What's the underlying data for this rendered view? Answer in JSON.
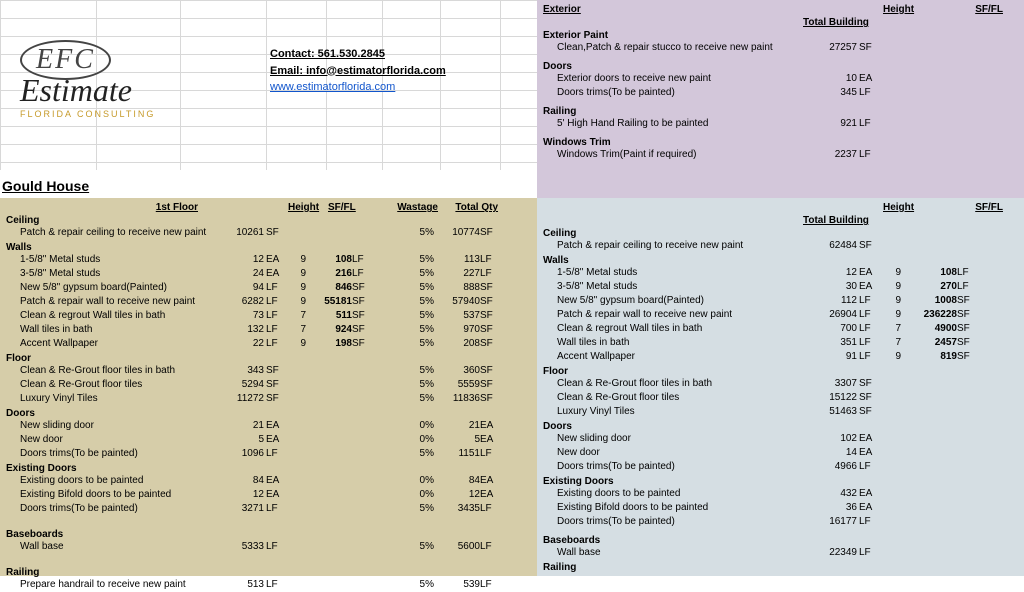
{
  "contact": {
    "phone_label": "Contact: 561.530.2845",
    "email_label": "Email: info@estimatorflorida.com",
    "url": "www.estimatorflorida.com"
  },
  "project_title": "Gould House",
  "logo": {
    "efc": "EFC",
    "word": "Estimate",
    "sub": "FLORIDA CONSULTING"
  },
  "left": {
    "floor_label": "1st Floor",
    "col_height": "Height",
    "col_sffl": "SF/FL",
    "col_wastage": "Wastage",
    "col_totalqty": "Total Qty",
    "sections": [
      {
        "name": "Ceiling",
        "rows": [
          {
            "d": "Patch & repair ceiling to receive new paint",
            "q": "10261",
            "u": "SF",
            "h": "",
            "v": "",
            "vu": "",
            "w": "5%",
            "t": "10774",
            "tu": "SF"
          }
        ]
      },
      {
        "name": "Walls",
        "rows": [
          {
            "d": "1-5/8\" Metal studs",
            "q": "12",
            "u": "EA",
            "h": "9",
            "v": "108",
            "vu": "LF",
            "w": "5%",
            "t": "113",
            "tu": "LF"
          },
          {
            "d": "3-5/8\" Metal studs",
            "q": "24",
            "u": "EA",
            "h": "9",
            "v": "216",
            "vu": "LF",
            "w": "5%",
            "t": "227",
            "tu": "LF"
          },
          {
            "d": "New 5/8\" gypsum board(Painted)",
            "q": "94",
            "u": "LF",
            "h": "9",
            "v": "846",
            "vu": "SF",
            "w": "5%",
            "t": "888",
            "tu": "SF"
          },
          {
            "d": "Patch & repair wall to receive new paint",
            "q": "6282",
            "u": "LF",
            "h": "9",
            "v": "55181",
            "vu": "SF",
            "w": "5%",
            "t": "57940",
            "tu": "SF"
          },
          {
            "d": "Clean & regrout Wall tiles in bath",
            "q": "73",
            "u": "LF",
            "h": "7",
            "v": "511",
            "vu": "SF",
            "w": "5%",
            "t": "537",
            "tu": "SF"
          },
          {
            "d": "Wall tiles in bath",
            "q": "132",
            "u": "LF",
            "h": "7",
            "v": "924",
            "vu": "SF",
            "w": "5%",
            "t": "970",
            "tu": "SF"
          },
          {
            "d": "Accent Wallpaper",
            "q": "22",
            "u": "LF",
            "h": "9",
            "v": "198",
            "vu": "SF",
            "w": "5%",
            "t": "208",
            "tu": "SF"
          }
        ]
      },
      {
        "name": "Floor",
        "rows": [
          {
            "d": "Clean & Re-Grout floor tiles in bath",
            "q": "343",
            "u": "SF",
            "h": "",
            "v": "",
            "vu": "",
            "w": "5%",
            "t": "360",
            "tu": "SF"
          },
          {
            "d": "Clean & Re-Grout floor tiles",
            "q": "5294",
            "u": "SF",
            "h": "",
            "v": "",
            "vu": "",
            "w": "5%",
            "t": "5559",
            "tu": "SF"
          },
          {
            "d": "Luxury Vinyl Tiles",
            "q": "11272",
            "u": "SF",
            "h": "",
            "v": "",
            "vu": "",
            "w": "5%",
            "t": "11836",
            "tu": "SF"
          }
        ]
      },
      {
        "name": "Doors",
        "rows": [
          {
            "d": "New sliding door",
            "q": "21",
            "u": "EA",
            "h": "",
            "v": "",
            "vu": "",
            "w": "0%",
            "t": "21",
            "tu": "EA"
          },
          {
            "d": "New door",
            "q": "5",
            "u": "EA",
            "h": "",
            "v": "",
            "vu": "",
            "w": "0%",
            "t": "5",
            "tu": "EA"
          },
          {
            "d": "Doors trims(To be painted)",
            "q": "1096",
            "u": "LF",
            "h": "",
            "v": "",
            "vu": "",
            "w": "5%",
            "t": "1151",
            "tu": "LF"
          }
        ]
      },
      {
        "name": "Existing Doors",
        "rows": [
          {
            "d": "Existing doors to be painted",
            "q": "84",
            "u": "EA",
            "h": "",
            "v": "",
            "vu": "",
            "w": "0%",
            "t": "84",
            "tu": "EA"
          },
          {
            "d": "Existing Bifold doors to be painted",
            "q": "12",
            "u": "EA",
            "h": "",
            "v": "",
            "vu": "",
            "w": "0%",
            "t": "12",
            "tu": "EA"
          },
          {
            "d": "Doors trims(To be painted)",
            "q": "3271",
            "u": "LF",
            "h": "",
            "v": "",
            "vu": "",
            "w": "5%",
            "t": "3435",
            "tu": "LF"
          }
        ]
      },
      {
        "name": "Baseboards",
        "rows": [
          {
            "d": "Wall base",
            "q": "5333",
            "u": "LF",
            "h": "",
            "v": "",
            "vu": "",
            "w": "5%",
            "t": "5600",
            "tu": "LF"
          }
        ]
      },
      {
        "name": "Railing",
        "rows": [
          {
            "d": "Prepare handrail to receive new paint",
            "q": "513",
            "u": "LF",
            "h": "",
            "v": "",
            "vu": "",
            "w": "5%",
            "t": "539",
            "tu": "LF"
          }
        ]
      }
    ]
  },
  "topright": {
    "title": "Exterior",
    "total_label": "Total Building",
    "col_height": "Height",
    "col_sffl": "SF/FL",
    "sections": [
      {
        "name": "Exterior Paint",
        "rows": [
          {
            "d": "Clean,Patch & repair stucco to receive new paint",
            "q": "27257",
            "u": "SF"
          }
        ]
      },
      {
        "name": "Doors",
        "rows": [
          {
            "d": "Exterior doors to receive new paint",
            "q": "10",
            "u": "EA"
          },
          {
            "d": "Doors trims(To be painted)",
            "q": "345",
            "u": "LF"
          }
        ]
      },
      {
        "name": "Railing",
        "rows": [
          {
            "d": "5' High Hand Railing to be painted",
            "q": "921",
            "u": "LF"
          }
        ]
      },
      {
        "name": "Windows Trim",
        "rows": [
          {
            "d": "Windows Trim(Paint if required)",
            "q": "2237",
            "u": "LF"
          }
        ]
      }
    ]
  },
  "botright": {
    "total_label": "Total Building",
    "col_height": "Height",
    "col_sffl": "SF/FL",
    "sections": [
      {
        "name": "Ceiling",
        "rows": [
          {
            "d": "Patch & repair ceiling to receive new paint",
            "q": "62484",
            "u": "SF"
          }
        ]
      },
      {
        "name": "Walls",
        "rows": [
          {
            "d": "1-5/8\" Metal studs",
            "q": "12",
            "u": "EA",
            "h": "9",
            "v": "108",
            "vu": "LF"
          },
          {
            "d": "3-5/8\" Metal studs",
            "q": "30",
            "u": "EA",
            "h": "9",
            "v": "270",
            "vu": "LF"
          },
          {
            "d": "New 5/8\" gypsum board(Painted)",
            "q": "112",
            "u": "LF",
            "h": "9",
            "v": "1008",
            "vu": "SF"
          },
          {
            "d": "Patch & repair wall to receive new paint",
            "q": "26904",
            "u": "LF",
            "h": "9",
            "v": "236228",
            "vu": "SF"
          },
          {
            "d": "Clean & regrout Wall tiles in bath",
            "q": "700",
            "u": "LF",
            "h": "7",
            "v": "4900",
            "vu": "SF"
          },
          {
            "d": "Wall tiles in bath",
            "q": "351",
            "u": "LF",
            "h": "7",
            "v": "2457",
            "vu": "SF"
          },
          {
            "d": "Accent Wallpaper",
            "q": "91",
            "u": "LF",
            "h": "9",
            "v": "819",
            "vu": "SF"
          }
        ]
      },
      {
        "name": "Floor",
        "rows": [
          {
            "d": "Clean & Re-Grout floor tiles in bath",
            "q": "3307",
            "u": "SF"
          },
          {
            "d": "Clean & Re-Grout floor tiles",
            "q": "15122",
            "u": "SF"
          },
          {
            "d": "Luxury Vinyl Tiles",
            "q": "51463",
            "u": "SF"
          }
        ]
      },
      {
        "name": "Doors",
        "rows": [
          {
            "d": "New sliding door",
            "q": "102",
            "u": "EA"
          },
          {
            "d": "New door",
            "q": "14",
            "u": "EA"
          },
          {
            "d": "Doors trims(To be painted)",
            "q": "4966",
            "u": "LF"
          }
        ]
      },
      {
        "name": "Existing Doors",
        "rows": [
          {
            "d": "Existing doors to be painted",
            "q": "432",
            "u": "EA"
          },
          {
            "d": "Existing Bifold doors to be painted",
            "q": "36",
            "u": "EA"
          },
          {
            "d": "Doors trims(To be painted)",
            "q": "16177",
            "u": "LF"
          }
        ]
      },
      {
        "name": "Baseboards",
        "rows": [
          {
            "d": "Wall base",
            "q": "22349",
            "u": "LF"
          }
        ]
      },
      {
        "name": "Railing",
        "rows": []
      }
    ]
  }
}
